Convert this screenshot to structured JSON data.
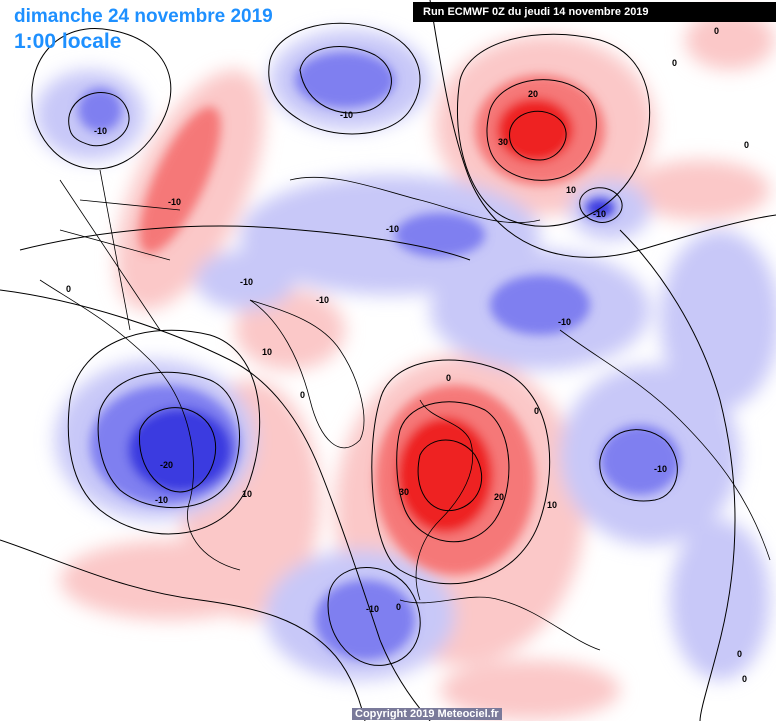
{
  "map": {
    "date_title": "dimanche 24 novembre 2019",
    "time_title": "1:00 locale",
    "run_info": "Run ECMWF 0Z du jeudi 14 novembre 2019",
    "copyright": "Copyright 2019 Meteociel.fr"
  },
  "colors": {
    "warm_strong": "#ee2222",
    "warm_mid": "#f57878",
    "warm_light": "#fbc8c8",
    "cold_strong": "#3a3ae0",
    "cold_mid": "#7f7ff0",
    "cold_light": "#c8c8f8",
    "contour": "#000000",
    "title_blue": "#1e90ff"
  },
  "contour_labels": [
    {
      "text": "-10"
    },
    {
      "text": "-10"
    },
    {
      "text": "-10"
    },
    {
      "text": "0"
    },
    {
      "text": "-10"
    },
    {
      "text": "-10"
    },
    {
      "text": "-10"
    },
    {
      "text": "0"
    },
    {
      "text": "10"
    },
    {
      "text": "0"
    },
    {
      "text": "-20"
    },
    {
      "text": "-10"
    },
    {
      "text": "10"
    },
    {
      "text": "20"
    },
    {
      "text": "30"
    },
    {
      "text": "10"
    },
    {
      "text": "-10"
    },
    {
      "text": "-10"
    },
    {
      "text": "0"
    },
    {
      "text": "30"
    },
    {
      "text": "20"
    },
    {
      "text": "10"
    },
    {
      "text": "0"
    },
    {
      "text": "-10"
    },
    {
      "text": "-10"
    },
    {
      "text": "0"
    },
    {
      "text": "0"
    },
    {
      "text": "0"
    },
    {
      "text": "0"
    },
    {
      "text": "0"
    }
  ]
}
